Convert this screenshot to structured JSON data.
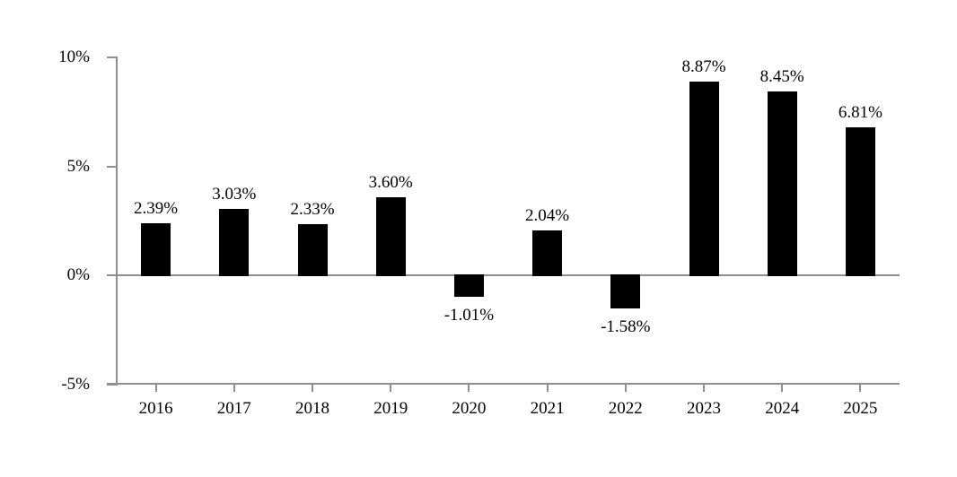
{
  "chart_data": {
    "type": "bar",
    "categories": [
      "2016",
      "2017",
      "2018",
      "2019",
      "2020",
      "2021",
      "2022",
      "2023",
      "2024",
      "2025"
    ],
    "values": [
      2.39,
      3.03,
      2.33,
      3.6,
      -1.01,
      2.04,
      -1.58,
      8.87,
      8.45,
      6.81
    ],
    "value_labels": [
      "2.39%",
      "3.03%",
      "2.33%",
      "3.60%",
      "-1.01%",
      "2.04%",
      "-1.58%",
      "8.87%",
      "8.45%",
      "6.81%"
    ],
    "y_ticks": [
      {
        "value": 10,
        "label": "10%"
      },
      {
        "value": 5,
        "label": "5%"
      },
      {
        "value": 0,
        "label": "0%"
      },
      {
        "value": -5,
        "label": "-5%"
      }
    ],
    "ylim": [
      -5,
      10
    ],
    "grid": false,
    "legend": "none",
    "colors": {
      "bar": "#000000",
      "axis": "#8f8f8f",
      "text": "#000000",
      "background": "#ffffff"
    }
  }
}
